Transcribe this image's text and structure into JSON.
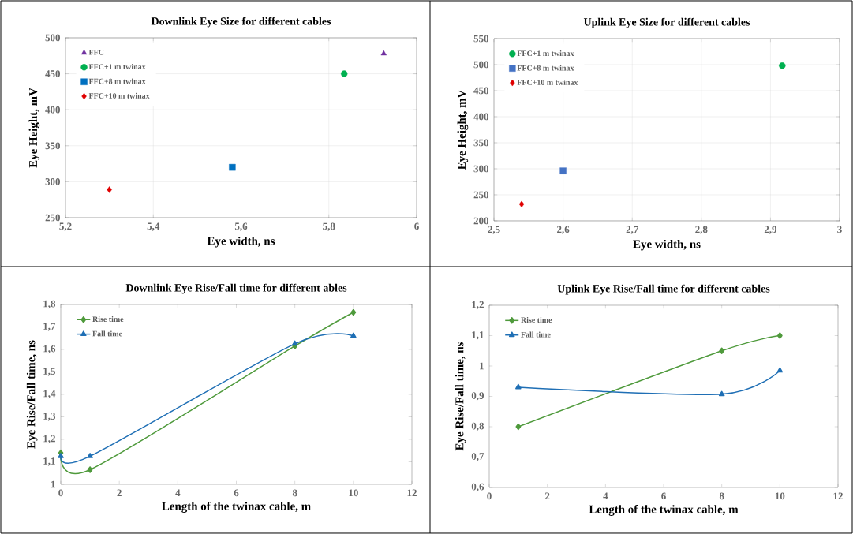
{
  "chart_data": [
    {
      "type": "scatter",
      "title": "Downlink Eye  Size for different cables",
      "xlabel": "Eye width, ns",
      "ylabel": "Eye Height, mV",
      "xlim": [
        5.2,
        6
      ],
      "xticks": [
        {
          "value": 5.2,
          "label": "5,2"
        },
        {
          "value": 5.4,
          "label": "5,4"
        },
        {
          "value": 5.6,
          "label": "5,6"
        },
        {
          "value": 5.8,
          "label": "5,8"
        },
        6
      ],
      "ylim": [
        250,
        500
      ],
      "yticks": [
        250,
        300,
        350,
        400,
        450,
        500
      ],
      "grid": true,
      "legend": "top left",
      "series": [
        {
          "name": "FFC",
          "color": "#7030a0",
          "marker": "triangle",
          "x": [
            5.925
          ],
          "values": [
            478
          ]
        },
        {
          "name": "FFC+1 m twinax",
          "color": "#00b050",
          "marker": "circle",
          "x": [
            5.835
          ],
          "values": [
            450
          ]
        },
        {
          "name": "FFC+8 m twinax",
          "color": "#0070c0",
          "marker": "square",
          "x": [
            5.58
          ],
          "values": [
            320
          ]
        },
        {
          "name": "FFC+10 m twinax",
          "color": "#e00000",
          "marker": "diamond",
          "x": [
            5.3
          ],
          "values": [
            289
          ]
        }
      ]
    },
    {
      "type": "scatter",
      "title": "Uplink Eye  Size for different cables",
      "xlabel": "Eye width, ns",
      "ylabel": "Eye Height, mV",
      "xlim": [
        2.5,
        3
      ],
      "xticks": [
        {
          "value": 2.5,
          "label": "2,5"
        },
        {
          "value": 2.6,
          "label": "2,6"
        },
        {
          "value": 2.7,
          "label": "2,7"
        },
        {
          "value": 2.8,
          "label": "2,8"
        },
        {
          "value": 2.9,
          "label": "2,9"
        },
        3
      ],
      "ylim": [
        200,
        550
      ],
      "yticks": [
        200,
        250,
        300,
        350,
        400,
        450,
        500,
        550
      ],
      "grid": true,
      "legend": "top left",
      "series": [
        {
          "name": "FFC+1 m twinax",
          "color": "#00b050",
          "marker": "circle",
          "x": [
            2.917
          ],
          "values": [
            498
          ]
        },
        {
          "name": "FFC+8 m twinax",
          "color": "#4472c4",
          "marker": "square",
          "x": [
            2.6
          ],
          "values": [
            296
          ]
        },
        {
          "name": "FFC+10 m twinax",
          "color": "#e00000",
          "marker": "diamond",
          "x": [
            2.54
          ],
          "values": [
            232
          ]
        }
      ]
    },
    {
      "type": "line",
      "title": "Downlink Eye Rise/Fall time for different ables",
      "xlabel": "Length of the twinax cable, m",
      "ylabel": "Eye Rise/Fall time, ns",
      "xlim": [
        0,
        12
      ],
      "xticks": [
        0,
        2,
        4,
        6,
        8,
        10,
        12
      ],
      "ylim": [
        1,
        1.8
      ],
      "yticks": [
        1,
        {
          "value": 1.1,
          "label": "1,1"
        },
        {
          "value": 1.2,
          "label": "1,2"
        },
        {
          "value": 1.3,
          "label": "1,3"
        },
        {
          "value": 1.4,
          "label": "1,4"
        },
        {
          "value": 1.5,
          "label": "1,5"
        },
        {
          "value": 1.6,
          "label": "1,6"
        },
        {
          "value": 1.7,
          "label": "1,7"
        },
        {
          "value": 1.8,
          "label": "1,8"
        }
      ],
      "legend": "top left",
      "series": [
        {
          "name": "Rise time",
          "color": "#4f9a3c",
          "marker": "diamond",
          "x": [
            0,
            1,
            8,
            10
          ],
          "values": [
            1.14,
            1.065,
            1.615,
            1.765
          ]
        },
        {
          "name": "Fall time",
          "color": "#1f6fb5",
          "marker": "triangle",
          "x": [
            0,
            1,
            8,
            10
          ],
          "values": [
            1.125,
            1.125,
            1.625,
            1.66
          ]
        }
      ]
    },
    {
      "type": "line",
      "title": "Uplink Eye Rise/Fall time for different cables",
      "xlabel": "Length of the twinax cable, m",
      "ylabel": "Eye Rise/Fall time, ns",
      "xlim": [
        0,
        12
      ],
      "xticks": [
        0,
        2,
        4,
        6,
        8,
        10,
        12
      ],
      "ylim": [
        0.6,
        1.2
      ],
      "yticks": [
        {
          "value": 0.6,
          "label": "0,6"
        },
        {
          "value": 0.7,
          "label": "0,7"
        },
        {
          "value": 0.8,
          "label": "0,8"
        },
        {
          "value": 0.9,
          "label": "0,9"
        },
        1,
        {
          "value": 1.1,
          "label": "1,1"
        },
        {
          "value": 1.2,
          "label": "1,2"
        }
      ],
      "legend": "top left",
      "series": [
        {
          "name": "Rise time",
          "color": "#4f9a3c",
          "marker": "diamond",
          "x": [
            1,
            8,
            10
          ],
          "values": [
            0.8,
            1.05,
            1.1
          ]
        },
        {
          "name": "Fall time",
          "color": "#1f6fb5",
          "marker": "triangle",
          "x": [
            1,
            8,
            10
          ],
          "values": [
            0.93,
            0.907,
            0.985
          ]
        }
      ]
    }
  ]
}
